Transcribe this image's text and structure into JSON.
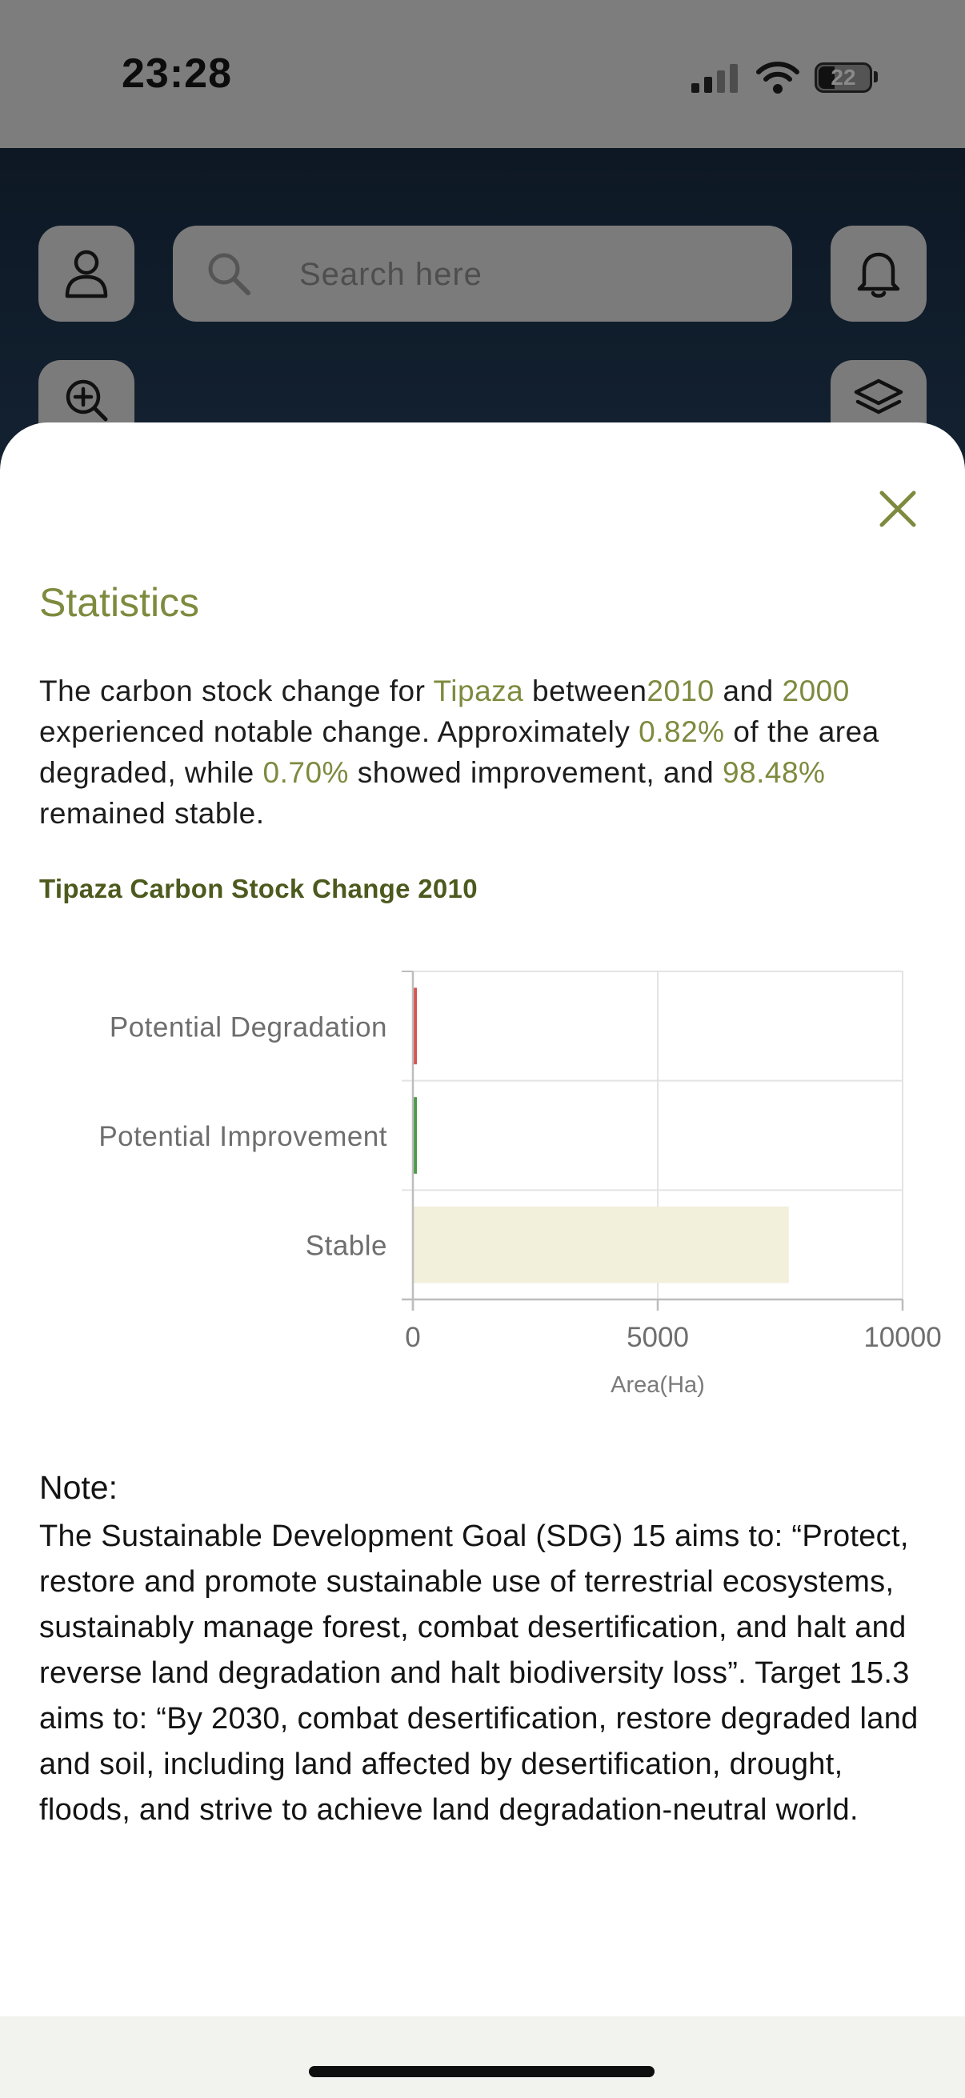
{
  "status_bar": {
    "time": "23:28",
    "battery": "22"
  },
  "search": {
    "placeholder": "Search here"
  },
  "icons": {
    "profile": "person-icon",
    "search": "search-icon",
    "notifications": "bell-icon",
    "zoom_in": "zoom-in-icon",
    "layers": "layers-icon",
    "close": "close-icon"
  },
  "colors": {
    "accent": "#7e8a3e",
    "degradation": "#d9534f",
    "improvement": "#4a9a4a",
    "stable": "#f2efdb"
  },
  "sheet": {
    "title": "Statistics",
    "summary": {
      "t1": "The carbon stock change for ",
      "region": "Tipaza",
      "t2": " between",
      "year_a": "2010",
      "t3": " and ",
      "year_b": "2000",
      "t4": " experienced notable change. Approximately ",
      "pct_degraded": "0.82%",
      "t5": " of the area degraded, while ",
      "pct_improved": "0.70%",
      "t6": " showed improvement, and ",
      "pct_stable": "98.48%",
      "t7": " remained stable."
    },
    "chart_title": "Tipaza Carbon Stock Change 2010",
    "note_label": "Note:",
    "note_text": "The Sustainable Development Goal (SDG) 15 aims to: “Protect, restore and promote sustainable use of terrestrial ecosystems, sustainably manage forest, combat desertification, and halt and reverse land degradation and halt biodiversity loss”. Target 15.3 aims to: “By 2030, combat desertification, restore degraded land and soil, including land affected by desertification, drought, floods, and strive to achieve land degradation-neutral world."
  },
  "chart_data": {
    "type": "bar",
    "orientation": "horizontal",
    "categories": [
      "Potential Degradation",
      "Potential Improvement",
      "Stable"
    ],
    "values": [
      64,
      55,
      7660
    ],
    "colors": [
      "#d9534f",
      "#4a9a4a",
      "#f2efdb"
    ],
    "xlabel": "Area(Ha)",
    "xlim": [
      0,
      10000
    ],
    "xticks": [
      0,
      5000,
      10000
    ],
    "xtick_labels": [
      "0",
      "5000",
      "10000"
    ],
    "grid": true,
    "legend": "none"
  }
}
